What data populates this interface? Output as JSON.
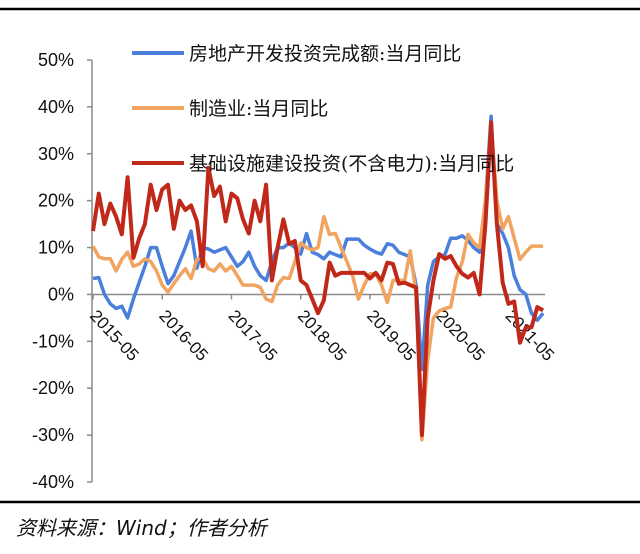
{
  "chart_data": {
    "type": "line",
    "title": "",
    "xlabel": "",
    "ylabel": "",
    "ylim": [
      -40,
      50
    ],
    "y_ticks": [
      "50%",
      "40%",
      "30%",
      "20%",
      "10%",
      "0%",
      "-10%",
      "-20%",
      "-30%",
      "-40%"
    ],
    "y_tick_values": [
      50,
      40,
      30,
      20,
      10,
      0,
      -10,
      -20,
      -30,
      -40
    ],
    "x_tick_labels": [
      "2015-05",
      "2016-05",
      "2017-05",
      "2018-05",
      "2019-05",
      "2020-05",
      "2021-05"
    ],
    "x": [
      "2015-05",
      "2015-06",
      "2015-07",
      "2015-08",
      "2015-09",
      "2015-10",
      "2015-11",
      "2015-12",
      "2016-01",
      "2016-02",
      "2016-03",
      "2016-04",
      "2016-05",
      "2016-06",
      "2016-07",
      "2016-08",
      "2016-09",
      "2016-10",
      "2016-11",
      "2016-12",
      "2017-01",
      "2017-02",
      "2017-03",
      "2017-04",
      "2017-05",
      "2017-06",
      "2017-07",
      "2017-08",
      "2017-09",
      "2017-10",
      "2017-11",
      "2017-12",
      "2018-01",
      "2018-02",
      "2018-03",
      "2018-04",
      "2018-05",
      "2018-06",
      "2018-07",
      "2018-08",
      "2018-09",
      "2018-10",
      "2018-11",
      "2018-12",
      "2019-01",
      "2019-02",
      "2019-03",
      "2019-04",
      "2019-05",
      "2019-06",
      "2019-07",
      "2019-08",
      "2019-09",
      "2019-10",
      "2019-11",
      "2019-12",
      "2020-01",
      "2020-02",
      "2020-03",
      "2020-04",
      "2020-05",
      "2020-06",
      "2020-07",
      "2020-08",
      "2020-09",
      "2020-10",
      "2020-11",
      "2020-12",
      "2021-01",
      "2021-02",
      "2021-03",
      "2021-04",
      "2021-05",
      "2021-06",
      "2021-07",
      "2021-08",
      "2021-09",
      "2021-10",
      "2021-11"
    ],
    "unit": "%",
    "grid": false,
    "legend_position": "top-left",
    "series": [
      {
        "name": "房地产开发投资完成额:当月同比",
        "color": "#4a7fdc",
        "values": [
          3.4,
          3.6,
          0,
          -2,
          -3,
          -2.5,
          -5,
          -1,
          2.6,
          6,
          10,
          10,
          6,
          2.3,
          4,
          7,
          10,
          13.5,
          5.6,
          10,
          9.7,
          9,
          9.5,
          10,
          8,
          6,
          7,
          9,
          6,
          4,
          3,
          7,
          10,
          10,
          11,
          10,
          8.6,
          13,
          9,
          8.5,
          7.6,
          9,
          8.5,
          8,
          11.8,
          11.8,
          11.8,
          10.5,
          9.7,
          9,
          8.6,
          10.8,
          10.5,
          9,
          8.5,
          8,
          2,
          -16,
          2,
          7,
          8,
          8.5,
          12,
          12,
          12.5,
          11.5,
          10,
          9,
          20,
          38,
          15,
          13,
          10,
          4,
          1,
          0,
          -4,
          -5.5,
          -4
        ]
      },
      {
        "name": "制造业:当月同比",
        "color": "#f0a460",
        "values": [
          10.3,
          8,
          7.6,
          7.6,
          5,
          7.5,
          9,
          6,
          6.5,
          7.6,
          7,
          5,
          2,
          0.5,
          2.3,
          4,
          5.5,
          3.4,
          7.5,
          7.8,
          5.5,
          5,
          6.5,
          5,
          6,
          4,
          2,
          2,
          2,
          1.5,
          -1,
          -1.5,
          2,
          3.6,
          3.4,
          7,
          11,
          10,
          9.5,
          10,
          16.6,
          12.8,
          13,
          10,
          7,
          4,
          -1,
          2,
          4.4,
          4.4,
          2,
          -1.7,
          3,
          3,
          3,
          9.3,
          0,
          -31,
          -14,
          -5,
          -3.5,
          -3,
          -2.7,
          3.6,
          7,
          12.8,
          11,
          10,
          20,
          36,
          20,
          14,
          16.6,
          12,
          7.5,
          9,
          10.3,
          10.3,
          10.3
        ]
      },
      {
        "name": "基础设施建设投资(不含电力):当月同比",
        "color": "#c0281a",
        "values": [
          13.5,
          21.5,
          15,
          19.4,
          16.6,
          12.8,
          25,
          7.8,
          12,
          15,
          23.4,
          18,
          22.4,
          23.4,
          14,
          20,
          18,
          19,
          15.6,
          6,
          27,
          21,
          23,
          15.6,
          21.5,
          20.5,
          16,
          13,
          20,
          15.6,
          23.4,
          3,
          10,
          16,
          10.8,
          11.4,
          3,
          2,
          -1,
          -4,
          -1.3,
          6.8,
          4,
          4.6,
          4.6,
          4.6,
          4.6,
          4.6,
          3.4,
          4.6,
          3,
          6.8,
          6.5,
          2.3,
          2.5,
          2,
          1.5,
          -30,
          -5,
          3,
          8.6,
          7.6,
          8.2,
          6,
          4.4,
          3.6,
          4.6,
          0,
          15,
          36.7,
          15,
          2.5,
          -2,
          -1.5,
          -10.3,
          -7,
          -7,
          -2.7,
          -3.4
        ]
      }
    ]
  },
  "footer": {
    "source": "资料来源：Wind；作者分析"
  }
}
